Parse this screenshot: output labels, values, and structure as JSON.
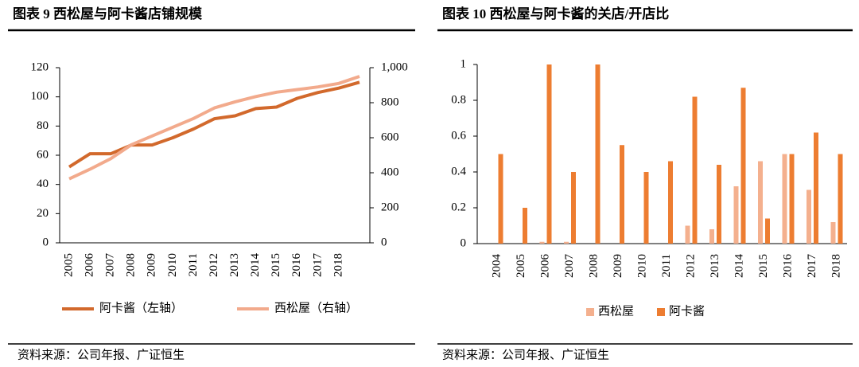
{
  "chart_data": [
    {
      "type": "line",
      "title": "图表 9 西松屋与阿卡酱店铺规模",
      "source": "资料来源：公司年报、广证恒生",
      "categories": [
        "2005",
        "2006",
        "2007",
        "2008",
        "2009",
        "2010",
        "2011",
        "2012",
        "2013",
        "2014",
        "2015",
        "2016",
        "2017",
        "2018",
        null
      ],
      "series": [
        {
          "name": "阿卡酱（左轴）",
          "color": "#d2692c",
          "axis": "y",
          "values": [
            52,
            61,
            61,
            67,
            67,
            72,
            78,
            85,
            87,
            92,
            93,
            99,
            103,
            106,
            110
          ]
        },
        {
          "name": "西松屋（右轴）",
          "color": "#f2aa8c",
          "axis": "y2",
          "values": [
            365,
            420,
            480,
            560,
            610,
            660,
            710,
            770,
            805,
            835,
            860,
            875,
            890,
            910,
            950
          ]
        }
      ],
      "ylim": [
        0,
        120
      ],
      "yticks": [
        0,
        20,
        40,
        60,
        80,
        100,
        120
      ],
      "y2lim": [
        0,
        1000
      ],
      "y2ticks": [
        0,
        200,
        400,
        600,
        800,
        {
          "value": 1000,
          "label": "1,000"
        }
      ],
      "grid": false,
      "legend": "bottom"
    },
    {
      "type": "bar",
      "title": "图表 10 西松屋与阿卡酱的关店/开店比",
      "source": "资料来源：公司年报、广证恒生",
      "categories": [
        "2004",
        "2005",
        "2006",
        "2007",
        "2008",
        "2009",
        "2010",
        "2011",
        "2012",
        "2013",
        "2014",
        "2015",
        "2016",
        "2017",
        "2018"
      ],
      "series": [
        {
          "name": "西松屋",
          "color": "#f4b08e",
          "values": [
            0,
            0,
            0.01,
            0.01,
            0,
            0,
            0,
            0,
            0.1,
            0.08,
            0.32,
            0.46,
            0.5,
            0.3,
            0.12
          ]
        },
        {
          "name": "阿卡酱",
          "color": "#ed7d31",
          "values": [
            0.5,
            0.2,
            1,
            0.4,
            1,
            0.55,
            0.4,
            0.46,
            0.82,
            0.44,
            0.87,
            0.14,
            0.5,
            0.62,
            0.5
          ]
        }
      ],
      "ylim": [
        0,
        1
      ],
      "yticks": [
        0,
        0.2,
        0.4,
        0.6,
        0.8,
        1
      ],
      "grid": false,
      "legend": "bottom"
    }
  ]
}
